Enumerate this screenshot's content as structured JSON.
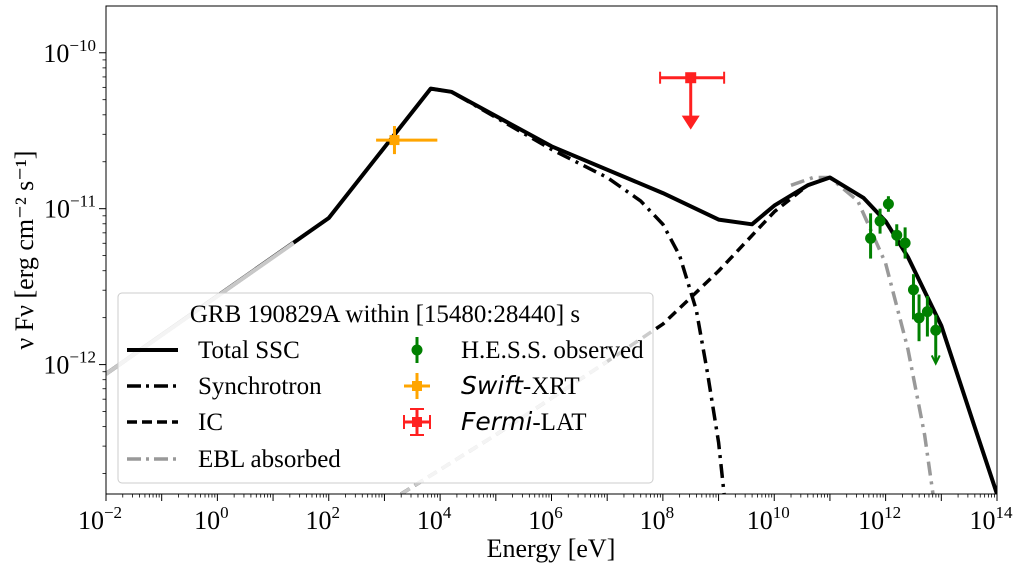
{
  "chart_data": {
    "type": "line",
    "title": "",
    "xlabel": "Energy [eV]",
    "ylabel": "ν Fν [erg cm⁻² s⁻¹]",
    "xscale": "log",
    "yscale": "log",
    "xlim_log10": [
      -2,
      14
    ],
    "ylim_log10": [
      -12.83,
      -9.7
    ],
    "x_ticks": [
      {
        "base": "10",
        "exp": "−2",
        "log": -2
      },
      {
        "base": "10",
        "exp": "0",
        "log": 0
      },
      {
        "base": "10",
        "exp": "2",
        "log": 2
      },
      {
        "base": "10",
        "exp": "4",
        "log": 4
      },
      {
        "base": "10",
        "exp": "6",
        "log": 6
      },
      {
        "base": "10",
        "exp": "8",
        "log": 8
      },
      {
        "base": "10",
        "exp": "10",
        "log": 10
      },
      {
        "base": "10",
        "exp": "12",
        "log": 12
      },
      {
        "base": "10",
        "exp": "14",
        "log": 14
      }
    ],
    "y_ticks": [
      {
        "base": "10",
        "exp": "−12",
        "log": -12
      },
      {
        "base": "10",
        "exp": "−11",
        "log": -11
      },
      {
        "base": "10",
        "exp": "−10",
        "log": -10
      }
    ],
    "legend": {
      "title": "GRB 190829A within [15480:28440] s",
      "location": "lower-left",
      "entries": [
        {
          "key": "total",
          "label": "Total SSC"
        },
        {
          "key": "sync",
          "label": "Synchrotron"
        },
        {
          "key": "ic",
          "label": "IC"
        },
        {
          "key": "ebl",
          "label": "EBL absorbed"
        },
        {
          "key": "hess",
          "label": "H.E.S.S. observed"
        },
        {
          "key": "swift",
          "label_italic": "Swift",
          "label": "-XRT"
        },
        {
          "key": "fermi",
          "label_italic": "Fermi",
          "label": "-LAT"
        }
      ]
    },
    "colors": {
      "total": "#000000",
      "sync": "#000000",
      "ic": "#000000",
      "ebl": "#999999",
      "hess": "#008000",
      "swift": "#ffa500",
      "fermi": "#ff2020",
      "legend_border": "#cccccc"
    },
    "series": [
      {
        "name": "Total SSC",
        "style": "solid",
        "color_key": "total",
        "points": [
          [
            -2,
            -12.06
          ],
          [
            2,
            -11.06
          ],
          [
            3.83,
            -10.23
          ],
          [
            4.2,
            -10.25
          ],
          [
            6,
            -10.6
          ],
          [
            8,
            -10.9
          ],
          [
            9,
            -11.07
          ],
          [
            9.6,
            -11.1
          ],
          [
            10,
            -10.98
          ],
          [
            10.6,
            -10.85
          ],
          [
            11,
            -10.8
          ],
          [
            11.6,
            -10.93
          ],
          [
            12,
            -11.08
          ],
          [
            12.4,
            -11.31
          ],
          [
            13,
            -11.75
          ],
          [
            13.6,
            -12.4
          ],
          [
            14,
            -12.83
          ]
        ]
      },
      {
        "name": "Synchrotron",
        "style": "dashdot",
        "color_key": "sync",
        "points": [
          [
            -2,
            -12.06
          ],
          [
            2,
            -11.06
          ],
          [
            3.83,
            -10.23
          ],
          [
            4.2,
            -10.25
          ],
          [
            6,
            -10.62
          ],
          [
            7,
            -10.8
          ],
          [
            7.6,
            -10.95
          ],
          [
            8,
            -11.1
          ],
          [
            8.3,
            -11.3
          ],
          [
            8.6,
            -11.65
          ],
          [
            8.8,
            -12.05
          ],
          [
            9,
            -12.5
          ],
          [
            9.1,
            -12.83
          ]
        ]
      },
      {
        "name": "IC",
        "style": "dashed",
        "color_key": "ic",
        "points": [
          [
            3.3,
            -12.83
          ],
          [
            5,
            -12.45
          ],
          [
            7,
            -11.98
          ],
          [
            8,
            -11.74
          ],
          [
            9,
            -11.4
          ],
          [
            10,
            -11.02
          ],
          [
            10.6,
            -10.85
          ],
          [
            11,
            -10.8
          ]
        ]
      },
      {
        "name": "EBL absorbed",
        "style": "dashdot",
        "color_key": "ebl",
        "points": [
          [
            10.3,
            -10.85
          ],
          [
            10.7,
            -10.8
          ],
          [
            11,
            -10.8
          ],
          [
            11.5,
            -10.95
          ],
          [
            12,
            -11.35
          ],
          [
            12.4,
            -11.9
          ],
          [
            12.7,
            -12.45
          ],
          [
            12.85,
            -12.83
          ]
        ]
      }
    ],
    "hess_points": [
      {
        "x": 11.73,
        "y": -11.19,
        "err_lo": 0.13,
        "err_hi": 0.16
      },
      {
        "x": 11.9,
        "y": -11.08,
        "err_lo": 0.08,
        "err_hi": 0.08
      },
      {
        "x": 12.05,
        "y": -10.97,
        "err_lo": 0.05,
        "err_hi": 0.05
      },
      {
        "x": 12.2,
        "y": -11.17,
        "err_lo": 0.07,
        "err_hi": 0.07
      },
      {
        "x": 12.35,
        "y": -11.22,
        "err_lo": 0.1,
        "err_hi": 0.1
      },
      {
        "x": 12.5,
        "y": -11.52,
        "err_lo": 0.19,
        "err_hi": 0.1
      },
      {
        "x": 12.6,
        "y": -11.7,
        "err_lo": 0.15,
        "err_hi": 0.15
      },
      {
        "x": 12.75,
        "y": -11.66,
        "err_lo": 0.16,
        "err_hi": 0.1
      },
      {
        "x": 12.9,
        "y": -11.78,
        "err_lo": 0.2,
        "err_hi": 0.1
      }
    ],
    "swift_point": {
      "x": 3.18,
      "x_lo": 2.85,
      "x_hi": 3.95,
      "y": -10.56,
      "err_lo": 0.09,
      "err_hi": 0.09
    },
    "fermi_upper_limit": {
      "x": 8.5,
      "x_lo": 7.95,
      "x_hi": 9.1,
      "y": -10.16,
      "arrow_to": -10.48
    }
  }
}
